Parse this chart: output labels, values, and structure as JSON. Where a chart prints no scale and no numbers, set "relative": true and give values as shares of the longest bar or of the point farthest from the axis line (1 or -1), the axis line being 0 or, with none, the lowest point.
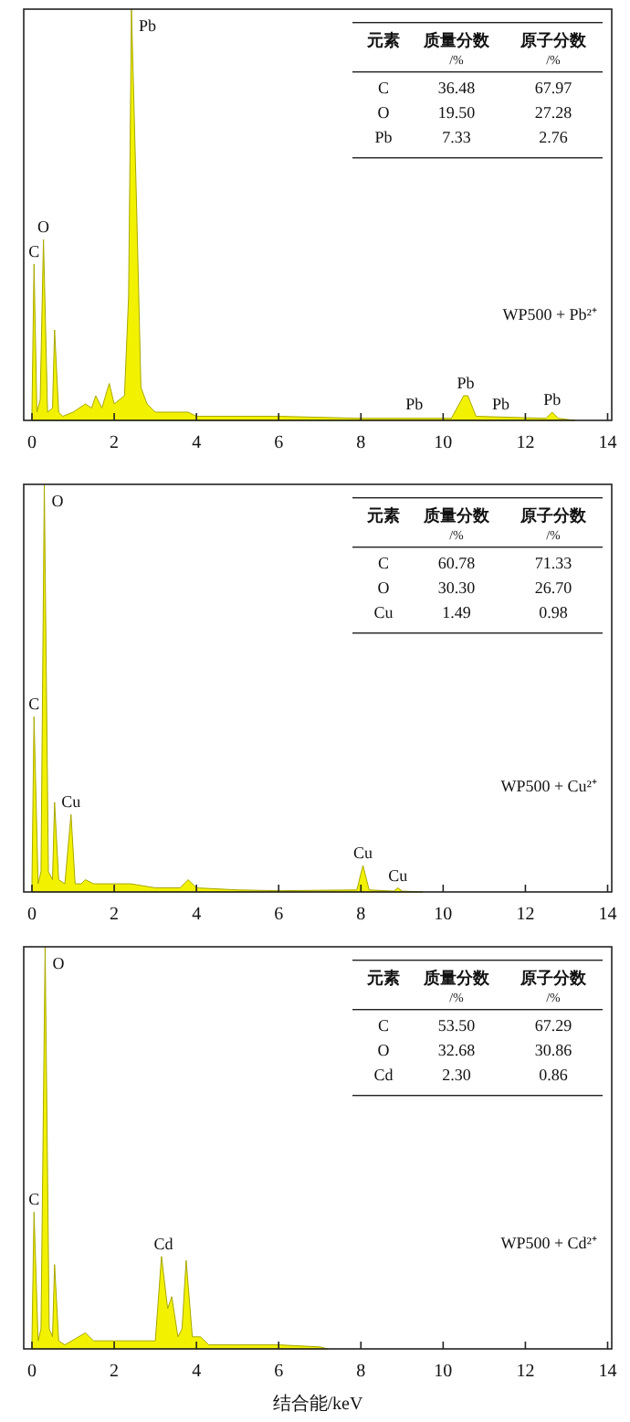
{
  "chart_data": [
    {
      "type": "area",
      "relative": true,
      "xlim": [
        -0.2,
        14.1
      ],
      "xticks": [
        0,
        2,
        4,
        6,
        8,
        10,
        12,
        14
      ],
      "grid": false,
      "x": [
        0,
        0.05,
        0.12,
        0.2,
        0.28,
        0.38,
        0.5,
        0.55,
        0.65,
        0.75,
        1.0,
        1.3,
        1.45,
        1.55,
        1.7,
        1.88,
        2.0,
        2.25,
        2.35,
        2.42,
        2.55,
        2.65,
        2.8,
        3.0,
        3.2,
        3.8,
        4.0,
        6.0,
        8.0,
        10.2,
        10.5,
        10.6,
        10.8,
        12.5,
        12.65,
        12.8,
        13.2
      ],
      "series": [
        {
          "color": "#f2f200",
          "values": [
            0.02,
            0.38,
            0.02,
            0.05,
            0.44,
            0.02,
            0.03,
            0.22,
            0.02,
            0.01,
            0.02,
            0.04,
            0.03,
            0.06,
            0.03,
            0.09,
            0.04,
            0.06,
            0.3,
            1.0,
            0.5,
            0.08,
            0.04,
            0.02,
            0.02,
            0.02,
            0.01,
            0.01,
            0.005,
            0.005,
            0.06,
            0.06,
            0.01,
            0.005,
            0.02,
            0.005,
            0
          ]
        }
      ],
      "annotations": [
        {
          "text": "C",
          "x": 0.05,
          "y": 0.38
        },
        {
          "text": "O",
          "x": 0.28,
          "y": 0.44
        },
        {
          "text": "Pb",
          "x": 2.42,
          "y": 1.0
        },
        {
          "text": "Pb",
          "x": 9.3,
          "y": 0.01
        },
        {
          "text": "Pb",
          "x": 10.55,
          "y": 0.06
        },
        {
          "text": "Pb",
          "x": 11.4,
          "y": 0.01
        },
        {
          "text": "Pb",
          "x": 12.65,
          "y": 0.02
        },
        "元素",
        "质量分数",
        "原子分数",
        "/%",
        "/%",
        "C",
        "36.48",
        "67.97",
        "O",
        "19.50",
        "27.28",
        "Pb",
        "7.33",
        "2.76",
        "WP500 + Pb²⁺"
      ]
    },
    {
      "type": "area",
      "relative": true,
      "xlim": [
        -0.2,
        14.1
      ],
      "xticks": [
        0,
        2,
        4,
        6,
        8,
        10,
        12,
        14
      ],
      "grid": false,
      "x": [
        0,
        0.05,
        0.15,
        0.22,
        0.3,
        0.4,
        0.5,
        0.55,
        0.65,
        0.8,
        0.95,
        1.05,
        1.2,
        1.3,
        1.5,
        2.0,
        2.4,
        3.0,
        3.6,
        3.8,
        4.0,
        5.0,
        6.0,
        7.9,
        8.05,
        8.2,
        8.8,
        8.9,
        9.0,
        9.5
      ],
      "series": [
        {
          "color": "#f2f200",
          "values": [
            0.02,
            0.43,
            0.02,
            0.05,
            1.0,
            0.05,
            0.03,
            0.22,
            0.03,
            0.02,
            0.19,
            0.02,
            0.02,
            0.03,
            0.02,
            0.02,
            0.02,
            0.01,
            0.01,
            0.03,
            0.01,
            0.005,
            0.003,
            0.005,
            0.065,
            0.005,
            0.002,
            0.01,
            0.002,
            0
          ]
        }
      ],
      "annotations": [
        {
          "text": "C",
          "x": 0.05,
          "y": 0.43
        },
        {
          "text": "O",
          "x": 0.3,
          "y": 1.0
        },
        {
          "text": "Cu",
          "x": 0.95,
          "y": 0.19
        },
        {
          "text": "Cu",
          "x": 8.05,
          "y": 0.065
        },
        {
          "text": "Cu",
          "x": 8.9,
          "y": 0.01
        },
        "元素",
        "质量分数",
        "原子分数",
        "/%",
        "/%",
        "C",
        "60.78",
        "71.33",
        "O",
        "30.30",
        "26.70",
        "Cu",
        "1.49",
        "0.98",
        "WP500 + Cu²⁺"
      ]
    },
    {
      "type": "area",
      "relative": true,
      "xlim": [
        -0.2,
        14.1
      ],
      "xticks": [
        0,
        2,
        4,
        6,
        8,
        10,
        12,
        14
      ],
      "grid": false,
      "xlabel": "结合能/keV",
      "x": [
        0,
        0.05,
        0.15,
        0.22,
        0.32,
        0.42,
        0.5,
        0.55,
        0.65,
        0.8,
        1.3,
        1.5,
        2.05,
        2.2,
        3.0,
        3.15,
        3.3,
        3.4,
        3.55,
        3.65,
        3.75,
        3.9,
        4.1,
        4.3,
        5.0,
        6.0,
        7.0,
        7.2
      ],
      "series": [
        {
          "color": "#f2f200",
          "values": [
            0.02,
            0.34,
            0.02,
            0.05,
            1.0,
            0.05,
            0.03,
            0.21,
            0.02,
            0.01,
            0.04,
            0.02,
            0.02,
            0.02,
            0.02,
            0.23,
            0.1,
            0.13,
            0.03,
            0.05,
            0.22,
            0.03,
            0.03,
            0.01,
            0.01,
            0.01,
            0.005,
            0
          ]
        }
      ],
      "annotations": [
        {
          "text": "C",
          "x": 0.05,
          "y": 0.34
        },
        {
          "text": "O",
          "x": 0.32,
          "y": 1.0
        },
        {
          "text": "Cd",
          "x": 3.2,
          "y": 0.23
        },
        "元素",
        "质量分数",
        "原子分数",
        "/%",
        "/%",
        "C",
        "53.50",
        "67.29",
        "O",
        "32.68",
        "30.86",
        "Cd",
        "2.30",
        "0.86",
        "WP500 + Cd²⁺"
      ]
    }
  ]
}
